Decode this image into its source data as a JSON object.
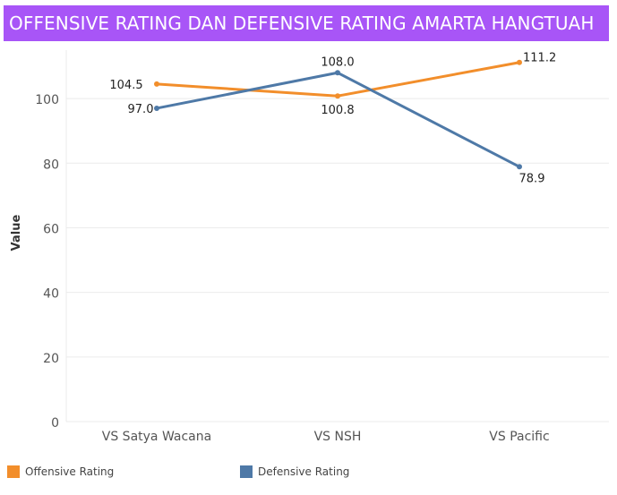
{
  "title": "OFFENSIVE RATING DAN DEFENSIVE RATING AMARTA HANGTUAH",
  "colors": {
    "title_bg": "#a855f7",
    "offensive": "#f28e2b",
    "defensive": "#4e79a7",
    "grid": "#ebebeb",
    "axis_text": "#555555"
  },
  "legend": [
    {
      "label": "Offensive Rating",
      "color": "#f28e2b"
    },
    {
      "label": "Defensive Rating",
      "color": "#4e79a7"
    }
  ],
  "chart_data": {
    "type": "line",
    "title": "OFFENSIVE RATING DAN DEFENSIVE RATING AMARTA HANGTUAH",
    "xlabel": "",
    "ylabel": "Value",
    "categories": [
      "VS Satya Wacana",
      "VS NSH",
      "VS Pacific"
    ],
    "series": [
      {
        "name": "Offensive Rating",
        "values": [
          104.5,
          100.8,
          111.2
        ],
        "labels": [
          "104.5",
          "100.8",
          "111.2"
        ]
      },
      {
        "name": "Defensive Rating",
        "values": [
          97.0,
          108.0,
          78.9
        ],
        "labels": [
          "97.0",
          "108.0",
          "78.9"
        ]
      }
    ],
    "ylim": [
      0,
      115
    ],
    "yticks": [
      0,
      20,
      40,
      60,
      80,
      100
    ],
    "grid": true,
    "legend_position": "bottom-left"
  }
}
